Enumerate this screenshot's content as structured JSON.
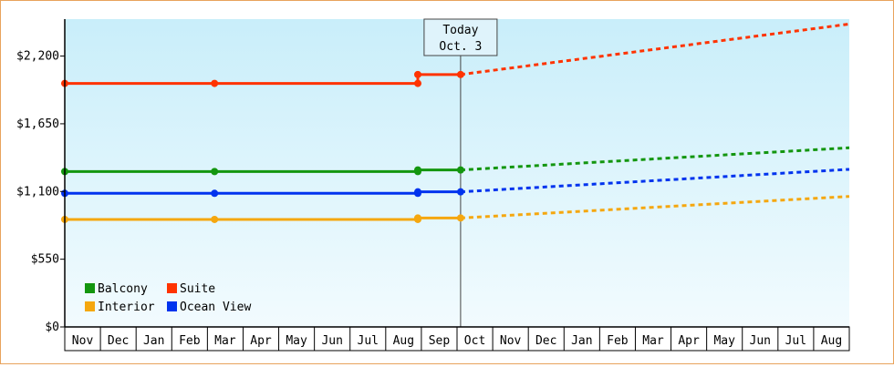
{
  "chart_data": {
    "type": "line",
    "title": "",
    "xlabel": "",
    "ylabel": "",
    "ylim": [
      0,
      2500
    ],
    "yticks": [
      {
        "value": 0,
        "label": "$0"
      },
      {
        "value": 550,
        "label": "$550"
      },
      {
        "value": 1100,
        "label": "$1,100"
      },
      {
        "value": 1650,
        "label": "$1,650"
      },
      {
        "value": 2200,
        "label": "$2,200"
      }
    ],
    "x_months": [
      "Nov",
      "Dec",
      "Jan",
      "Feb",
      "Mar",
      "Apr",
      "May",
      "Jun",
      "Jul",
      "Aug",
      "Sep",
      "Oct",
      "Nov",
      "Dec",
      "Jan",
      "Feb",
      "Mar",
      "Apr",
      "May",
      "Jun",
      "Jul",
      "Aug"
    ],
    "xlim_month_index": [
      0,
      22
    ],
    "today": {
      "line1": "Today",
      "line2": "Oct. 3",
      "x": 11.1
    },
    "grid": false,
    "legend_position": "bottom-left",
    "background_gradient": [
      "#c9eefa",
      "#f2fbfe"
    ],
    "series": [
      {
        "name": "Balcony",
        "color": "#13960f",
        "actual": [
          [
            0,
            1262
          ],
          [
            4.2,
            1262
          ],
          [
            9.9,
            1262
          ],
          [
            9.9,
            1275
          ],
          [
            11.1,
            1275
          ]
        ],
        "forecast": [
          [
            11.1,
            1275
          ],
          [
            22,
            1455
          ]
        ]
      },
      {
        "name": "Suite",
        "color": "#ff3300",
        "actual": [
          [
            0,
            1978
          ],
          [
            4.2,
            1978
          ],
          [
            9.9,
            1978
          ],
          [
            9.9,
            2050
          ],
          [
            11.1,
            2050
          ]
        ],
        "forecast": [
          [
            11.1,
            2050
          ],
          [
            22,
            2460
          ]
        ]
      },
      {
        "name": "Interior",
        "color": "#f5a70f",
        "actual": [
          [
            0,
            873
          ],
          [
            4.2,
            873
          ],
          [
            9.9,
            873
          ],
          [
            9.9,
            885
          ],
          [
            11.1,
            885
          ]
        ],
        "forecast": [
          [
            11.1,
            885
          ],
          [
            22,
            1060
          ]
        ]
      },
      {
        "name": "Ocean View",
        "color": "#0033ee",
        "actual": [
          [
            0,
            1085
          ],
          [
            4.2,
            1085
          ],
          [
            9.9,
            1085
          ],
          [
            9.9,
            1097
          ],
          [
            11.1,
            1097
          ]
        ],
        "forecast": [
          [
            11.1,
            1097
          ],
          [
            22,
            1280
          ]
        ]
      }
    ]
  }
}
